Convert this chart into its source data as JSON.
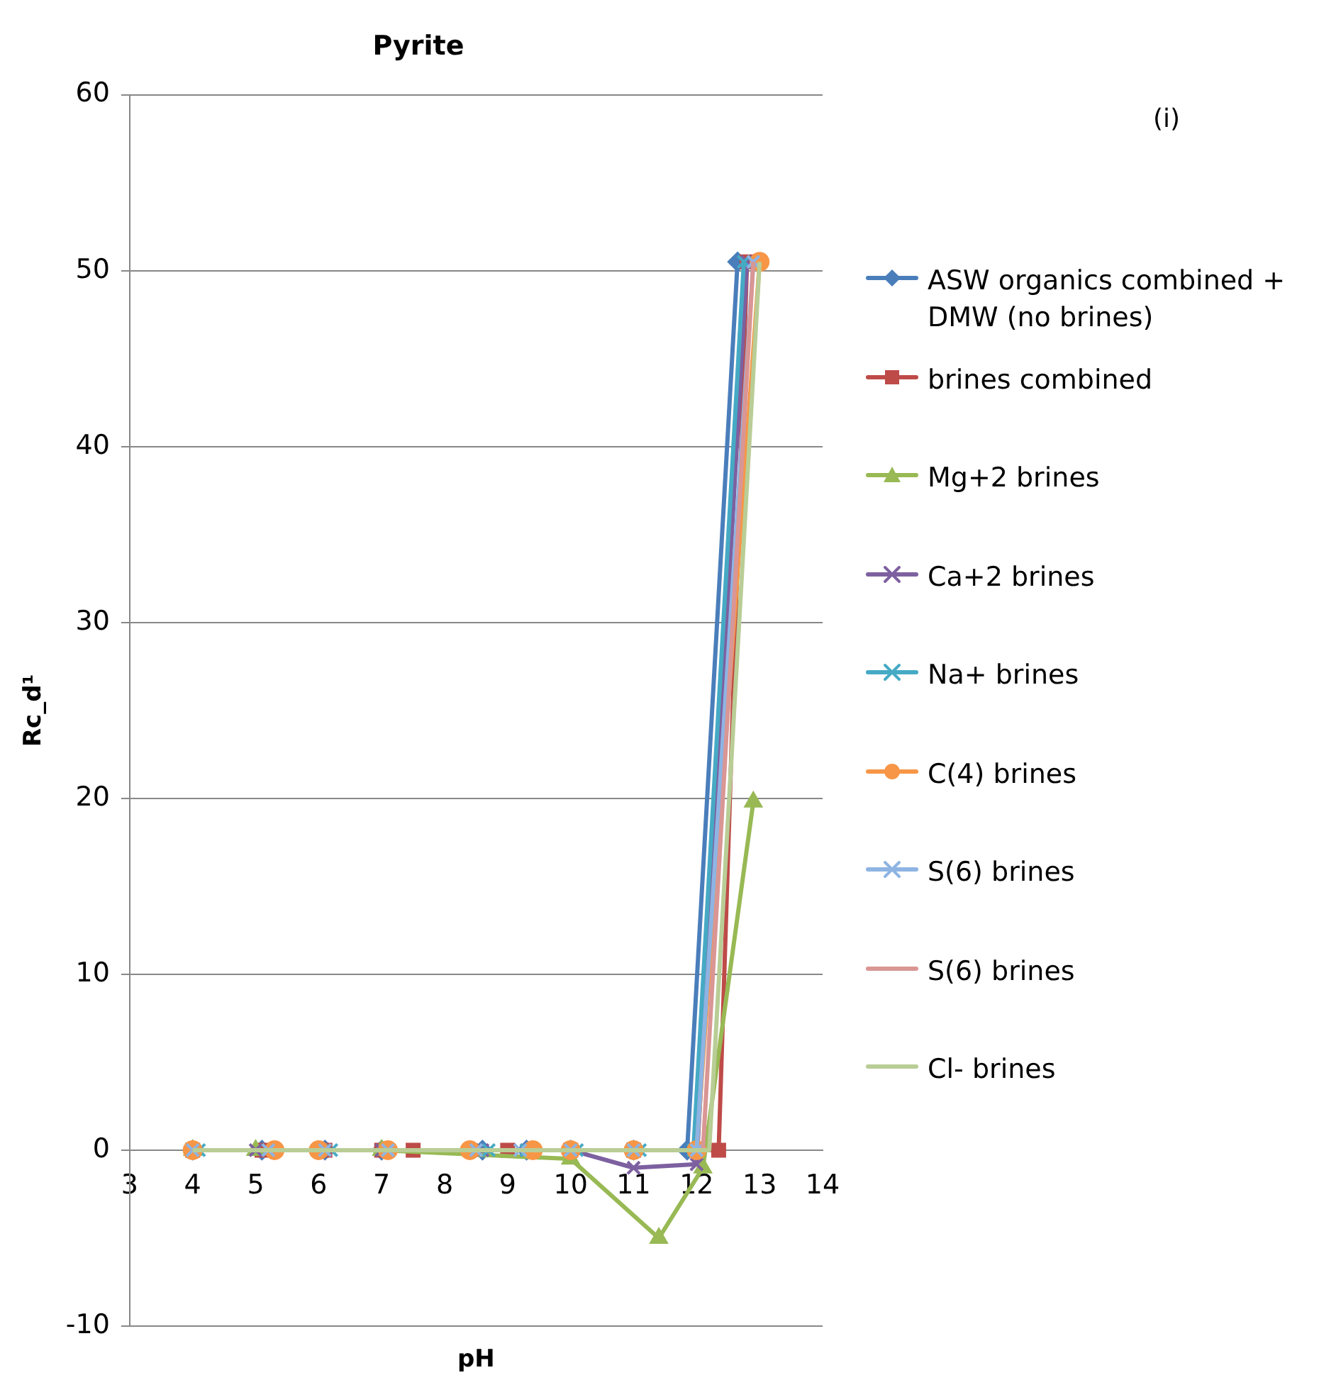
{
  "chart_data": {
    "type": "line",
    "title": "Pyrite",
    "xlabel": "pH",
    "ylabel": "Rc_d¹",
    "annotations": [
      "(i)"
    ],
    "xlim": [
      3,
      14
    ],
    "xticks": [
      3,
      4,
      5,
      6,
      7,
      8,
      9,
      10,
      11,
      12,
      13,
      14
    ],
    "ylim": [
      -10,
      60
    ],
    "yticks": [
      -10,
      0,
      10,
      20,
      30,
      40,
      50,
      60
    ],
    "grid": "y",
    "legend": "right",
    "series": [
      {
        "name": "ASW organics combined + DMW (no brines)",
        "color": "#4a7ebb",
        "marker": "diamond",
        "x": [
          4,
          5.1,
          6.1,
          7,
          8.6,
          9.3,
          10,
          11,
          11.85,
          12.65
        ],
        "values": [
          0,
          0,
          0,
          0,
          0,
          0,
          0,
          0,
          0,
          50.5
        ]
      },
      {
        "name": "brines combined",
        "color": "#be4b48",
        "marker": "square",
        "x": [
          4,
          5.1,
          6.1,
          7,
          7.5,
          9,
          10,
          11,
          12.35,
          12.8
        ],
        "values": [
          0,
          0,
          0,
          0,
          0,
          0,
          0,
          0,
          0,
          50.5
        ]
      },
      {
        "name": "Mg+2 brines",
        "color": "#98b954",
        "marker": "triangle",
        "x": [
          4,
          5,
          7,
          10,
          11.4,
          12.1,
          12.9
        ],
        "values": [
          0,
          0,
          0,
          -0.5,
          -5,
          -1,
          19.8
        ]
      },
      {
        "name": "Ca+2 brines",
        "color": "#7d60a0",
        "marker": "cross",
        "x": [
          4,
          5,
          6.1,
          7,
          8.6,
          9.3,
          10,
          11,
          12,
          12.8
        ],
        "values": [
          0,
          0,
          0,
          0,
          0,
          0,
          0,
          -1,
          -0.8,
          50.5
        ]
      },
      {
        "name": "Na+ brines",
        "color": "#46aac5",
        "marker": "cross",
        "x": [
          4.1,
          5.2,
          6.2,
          7.1,
          8.7,
          9.3,
          10.1,
          11.1,
          11.95,
          12.75
        ],
        "values": [
          0,
          0,
          0,
          0,
          0,
          0,
          0,
          0,
          0,
          50.5
        ]
      },
      {
        "name": "C(4) brines",
        "color": "#f79646",
        "marker": "circle",
        "x": [
          4,
          5.3,
          6,
          7.1,
          8.4,
          9.4,
          10,
          11,
          12,
          13
        ],
        "values": [
          0,
          0,
          0,
          0,
          0,
          0,
          0,
          0,
          0,
          50.5
        ]
      },
      {
        "name": "S(6) brines",
        "color": "#8eb4e3",
        "marker": "cross",
        "x": [
          4,
          5.2,
          6.1,
          7.1,
          8.5,
          9.2,
          10,
          11,
          12,
          12.9
        ],
        "values": [
          0,
          0,
          0,
          0,
          0,
          0,
          0,
          0,
          0,
          50.5
        ]
      },
      {
        "name": "S(6) brines",
        "color": "#d99694",
        "marker": "none",
        "x": [
          4,
          5.2,
          6.1,
          7.1,
          8.5,
          9.2,
          10,
          11,
          12.1,
          12.9
        ],
        "values": [
          0,
          0,
          0,
          0,
          0,
          0,
          0,
          0,
          0,
          50.5
        ]
      },
      {
        "name": "Cl- brines",
        "color": "#b9cd96",
        "marker": "none",
        "x": [
          4,
          5.2,
          6.1,
          7.1,
          8.5,
          9.2,
          10,
          11,
          12.2,
          13
        ],
        "values": [
          0,
          0,
          0,
          0,
          0,
          0,
          0,
          0,
          0,
          50.5
        ]
      }
    ]
  }
}
